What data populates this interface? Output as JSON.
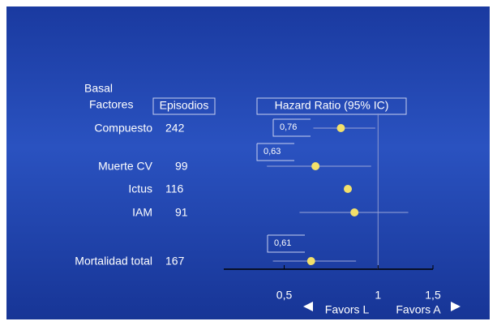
{
  "chart_data": {
    "type": "forest",
    "row_header": [
      "Basal",
      "Factores"
    ],
    "count_header": "Episodios",
    "axis_header": "Hazard Ratio (95% IC)",
    "categories": [
      "Compuesto",
      "Muerte CV",
      "Ictus",
      "IAM",
      "Mortalidad total"
    ],
    "counts": [
      242,
      99,
      116,
      91,
      167
    ],
    "values": [
      0.76,
      0.63,
      0.8,
      0.84,
      0.61
    ],
    "value_labels": [
      "0,76",
      "0,63",
      null,
      null,
      "0,61"
    ],
    "ci_low": [
      0.62,
      0.44,
      0.79,
      0.56,
      0.46
    ],
    "ci_high": [
      0.98,
      0.95,
      0.81,
      1.25,
      0.85
    ],
    "reference_line": 1,
    "log_scale": true,
    "xlim": [
      0.32,
      1.5
    ],
    "xticks": [
      {
        "value": 0.5,
        "label": "0,5"
      },
      1,
      {
        "value": 1.5,
        "label": "1,5"
      }
    ],
    "left_label": "Favors L",
    "right_label": "Favors A",
    "color": "#f3e06a"
  }
}
